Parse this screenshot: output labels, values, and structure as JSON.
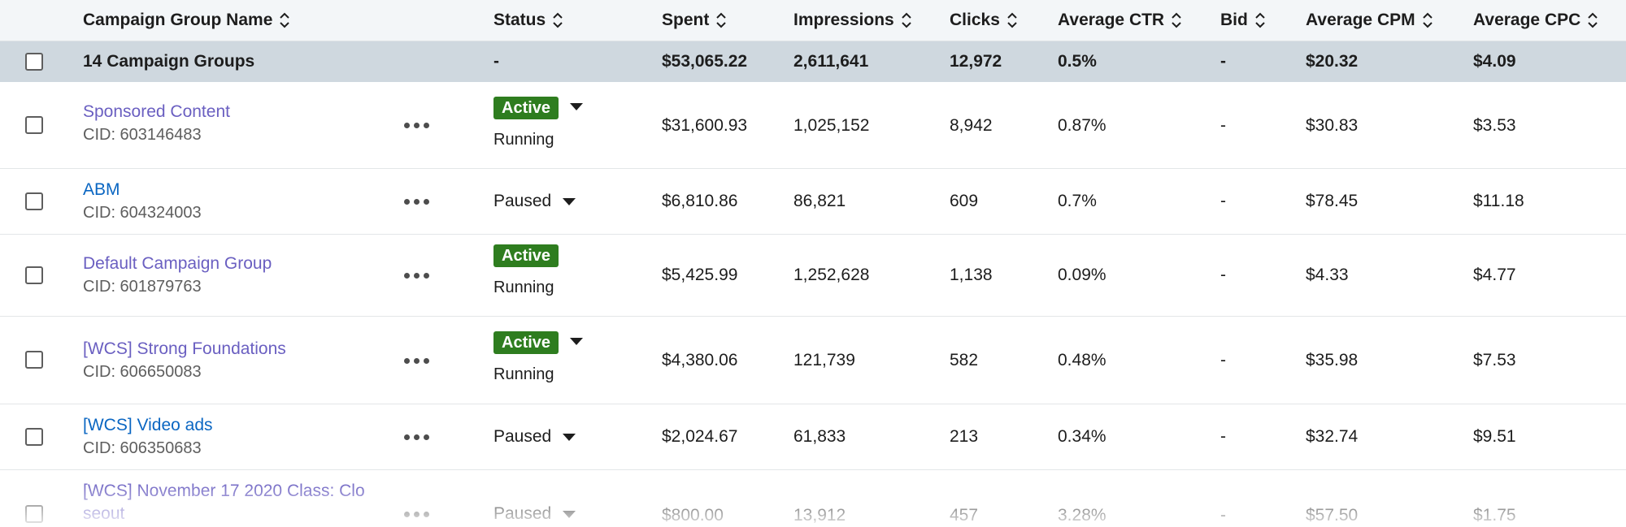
{
  "columns": {
    "name": "Campaign Group Name",
    "status": "Status",
    "spent": "Spent",
    "impressions": "Impressions",
    "clicks": "Clicks",
    "ctr": "Average CTR",
    "bid": "Bid",
    "cpm": "Average CPM",
    "cpc": "Average CPC"
  },
  "summary": {
    "name": "14 Campaign Groups",
    "status": "-",
    "spent": "$53,065.22",
    "impressions": "2,611,641",
    "clicks": "12,972",
    "ctr": "0.5%",
    "bid": "-",
    "cpm": "$20.32",
    "cpc": "$4.09"
  },
  "rows": [
    {
      "name": "Sponsored Content",
      "cid": "CID: 603146483",
      "badge": "Active",
      "substatus": "Running",
      "spent": "$31,600.93",
      "impressions": "1,025,152",
      "clicks": "8,942",
      "ctr": "0.87%",
      "bid": "-",
      "cpm": "$30.83",
      "cpc": "$3.53"
    },
    {
      "name": "ABM",
      "cid": "CID: 604324003",
      "status": "Paused",
      "spent": "$6,810.86",
      "impressions": "86,821",
      "clicks": "609",
      "ctr": "0.7%",
      "bid": "-",
      "cpm": "$78.45",
      "cpc": "$11.18"
    },
    {
      "name": "Default Campaign Group",
      "cid": "CID: 601879763",
      "badge": "Active",
      "substatus": "Running",
      "spent": "$5,425.99",
      "impressions": "1,252,628",
      "clicks": "1,138",
      "ctr": "0.09%",
      "bid": "-",
      "cpm": "$4.33",
      "cpc": "$4.77"
    },
    {
      "name": "[WCS] Strong Foundations",
      "cid": "CID: 606650083",
      "badge": "Active",
      "substatus": "Running",
      "spent": "$4,380.06",
      "impressions": "121,739",
      "clicks": "582",
      "ctr": "0.48%",
      "bid": "-",
      "cpm": "$35.98",
      "cpc": "$7.53"
    },
    {
      "name": "[WCS] Video ads",
      "cid": "CID: 606350683",
      "status": "Paused",
      "spent": "$2,024.67",
      "impressions": "61,833",
      "clicks": "213",
      "ctr": "0.34%",
      "bid": "-",
      "cpm": "$32.74",
      "cpc": "$9.51"
    },
    {
      "name_line1": "[WCS] November 17 2020 Class: Clo",
      "name_line2": "seout",
      "status": "Paused",
      "spent": "$800.00",
      "impressions": "13,912",
      "clicks": "457",
      "ctr": "3.28%",
      "bid": "-",
      "cpm": "$57.50",
      "cpc": "$1.75"
    }
  ],
  "colors": {
    "link_purple": "#6a5fc1",
    "link_blue": "#0a66c2",
    "active_green": "#2e7d1f",
    "summary_bg": "#cfd8df",
    "header_bg": "#f3f6f8"
  },
  "icons": {
    "sort": "sort-icon",
    "caret": "caret-down-icon",
    "more": "more-horizontal-icon",
    "checkbox": "checkbox"
  }
}
